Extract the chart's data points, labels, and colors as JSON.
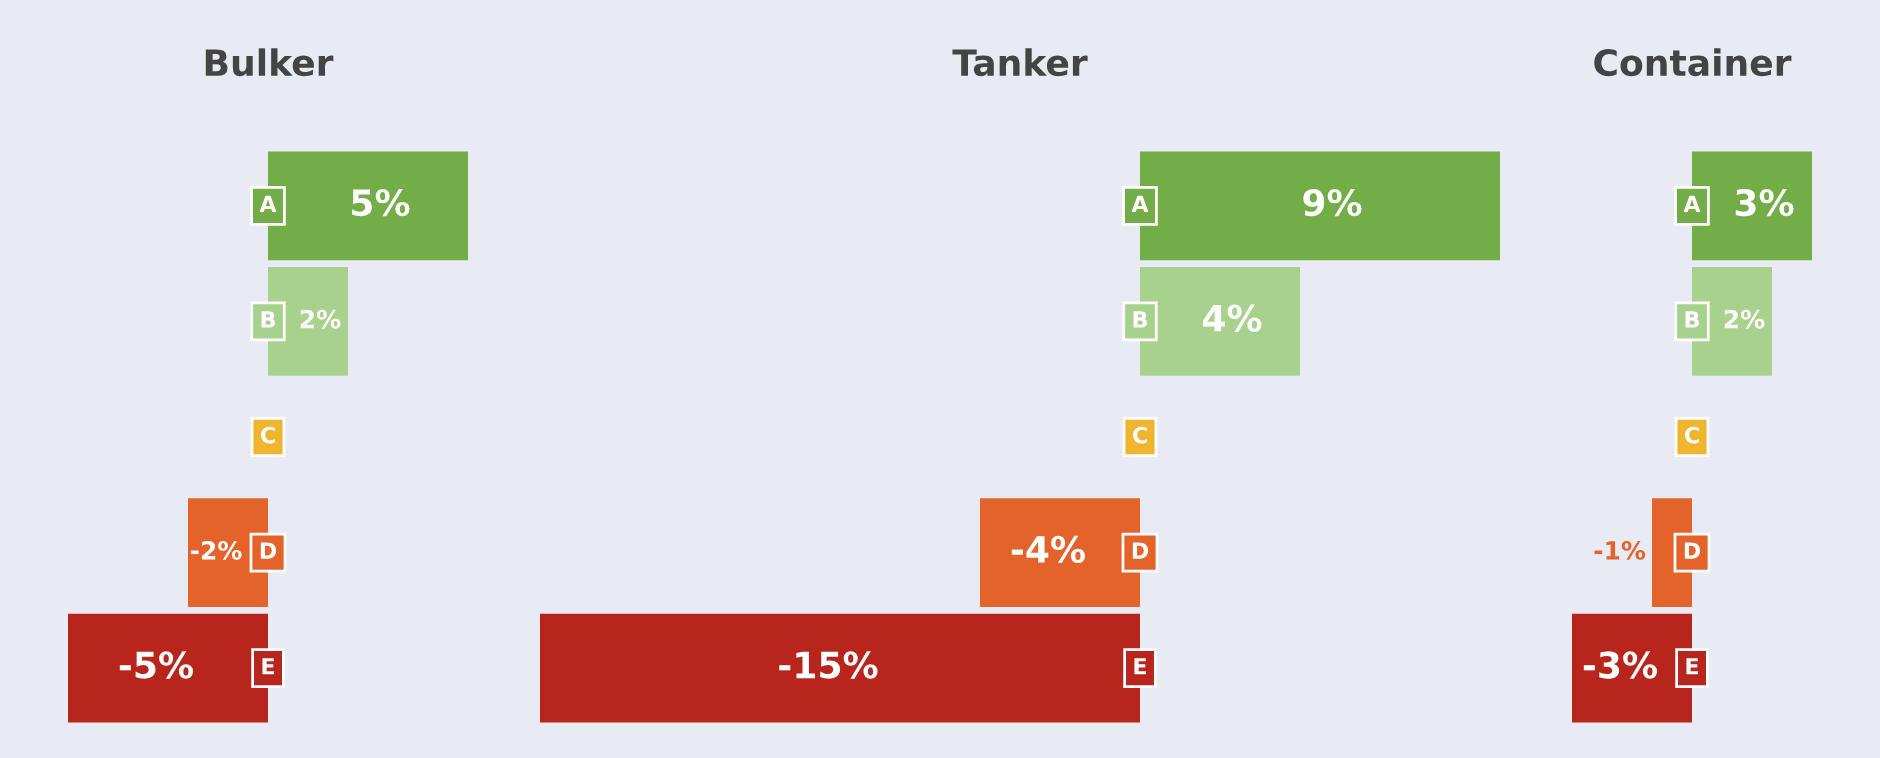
{
  "chart_data": [
    {
      "type": "bar",
      "orientation": "horizontal",
      "title": "Bulker",
      "categories": [
        "A",
        "B",
        "C",
        "D",
        "E"
      ],
      "values": [
        5,
        2,
        null,
        -2,
        -5
      ],
      "value_labels": [
        "5%",
        "2%",
        null,
        "-2%",
        "-5%"
      ],
      "colors": [
        "#72ad47",
        "#a9d18e",
        "#f0b52e",
        "#e4632b",
        "#b8251d"
      ],
      "tick_labels": false
    },
    {
      "type": "bar",
      "orientation": "horizontal",
      "title": "Tanker",
      "categories": [
        "A",
        "B",
        "C",
        "D",
        "E"
      ],
      "values": [
        9,
        4,
        null,
        -4,
        -15
      ],
      "value_labels": [
        "9%",
        "4%",
        null,
        "-4%",
        "-15%"
      ],
      "colors": [
        "#72ad47",
        "#a9d18e",
        "#f0b52e",
        "#e4632b",
        "#b8251d"
      ],
      "tick_labels": false
    },
    {
      "type": "bar",
      "orientation": "horizontal",
      "title": "Container",
      "categories": [
        "A",
        "B",
        "C",
        "D",
        "E"
      ],
      "values": [
        3,
        2,
        null,
        -1,
        -3
      ],
      "value_labels": [
        "3%",
        "2%",
        null,
        "-1%",
        "-3%"
      ],
      "colors": [
        "#72ad47",
        "#a9d18e",
        "#f0b52e",
        "#e4632b",
        "#b8251d"
      ],
      "tick_labels": false
    }
  ]
}
